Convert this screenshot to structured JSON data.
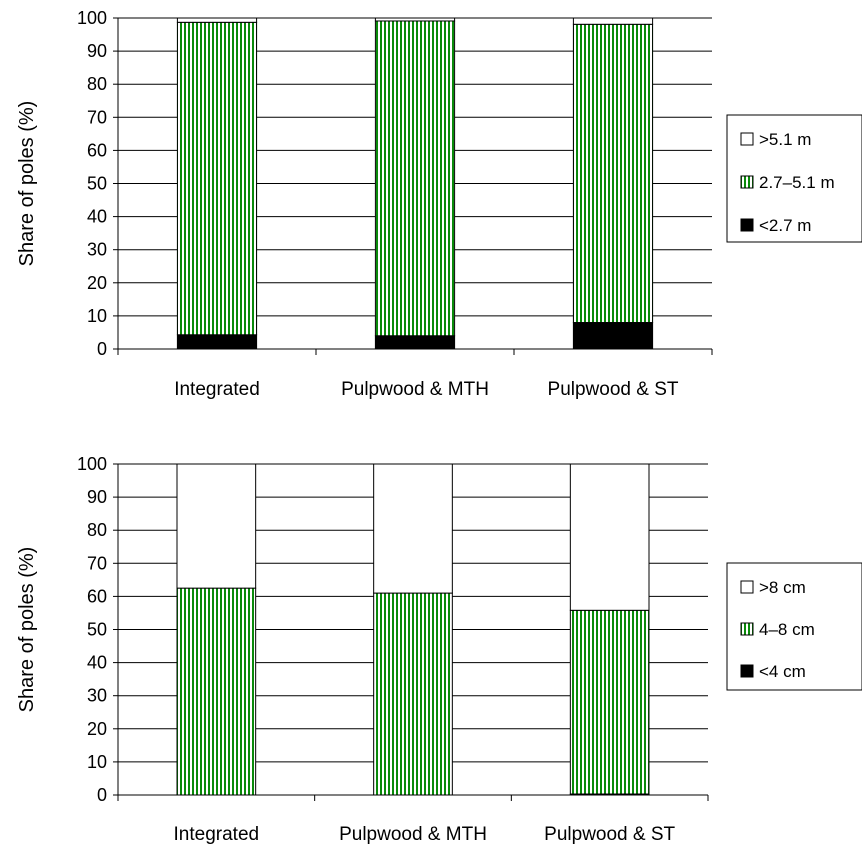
{
  "chart_data": [
    {
      "type": "bar",
      "stacked": true,
      "ylabel": "Share of poles (%)",
      "ylim": [
        0,
        100
      ],
      "yticks": [
        "0",
        "10",
        "20",
        "30",
        "40",
        "50",
        "60",
        "70",
        "80",
        "90",
        "100"
      ],
      "grid": true,
      "legend_position": "right",
      "categories": [
        "Integrated",
        "Pulpwood & MTH",
        "Pulpwood & ST"
      ],
      "series": [
        {
          "name": "<2.7 m",
          "values": [
            4.3,
            4.0,
            8.0
          ]
        },
        {
          "name": "2.7–5.1 m",
          "values": [
            94.4,
            95.1,
            90.1
          ]
        },
        {
          "name": ">5.1 m",
          "values": [
            1.3,
            0.9,
            1.9
          ]
        }
      ],
      "colors": {
        "series0": "#000000",
        "series1": "#0a8a0a",
        "series2": "#ffffff"
      }
    },
    {
      "type": "bar",
      "stacked": true,
      "ylabel": "Share of poles (%)",
      "ylim": [
        0,
        100
      ],
      "yticks": [
        "0",
        "10",
        "20",
        "30",
        "40",
        "50",
        "60",
        "70",
        "80",
        "90",
        "100"
      ],
      "grid": true,
      "legend_position": "right",
      "categories": [
        "Integrated",
        "Pulpwood & MTH",
        "Pulpwood & ST"
      ],
      "series": [
        {
          "name": "<4 cm",
          "values": [
            0.0,
            0.0,
            0.3
          ]
        },
        {
          "name": "4–8 cm",
          "values": [
            62.5,
            61.0,
            55.5
          ]
        },
        {
          "name": ">8 cm",
          "values": [
            37.5,
            39.0,
            44.2
          ]
        }
      ],
      "colors": {
        "series0": "#000000",
        "series1": "#0a8a0a",
        "series2": "#ffffff"
      }
    }
  ]
}
